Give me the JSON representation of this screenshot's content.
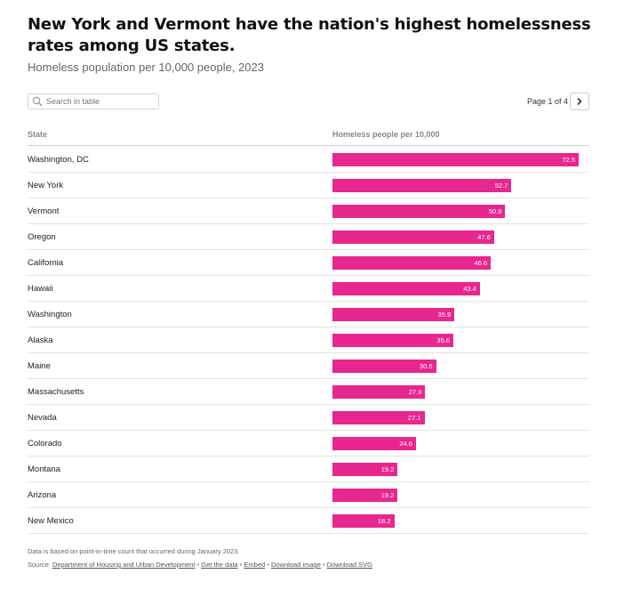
{
  "header": {
    "title": "New York and Vermont have the nation's highest homelessness rates among US states.",
    "subtitle": "Homeless population per 10,000 people, 2023"
  },
  "table_controls": {
    "search_placeholder": "Search in table",
    "page_label": "Page 1 of 4"
  },
  "columns": {
    "state": "State",
    "value": "Homeless people per 10,000"
  },
  "colors": {
    "bar": "#e8268f"
  },
  "chart_data": {
    "type": "bar",
    "orientation": "horizontal",
    "categories": [
      "Washington, DC",
      "New York",
      "Vermont",
      "Oregon",
      "California",
      "Hawaii",
      "Washington",
      "Alaska",
      "Maine",
      "Massachusetts",
      "Nevada",
      "Colorado",
      "Montana",
      "Arizona",
      "New Mexico"
    ],
    "values": [
      72.5,
      52.7,
      50.9,
      47.6,
      46.6,
      43.4,
      35.9,
      35.6,
      30.5,
      27.3,
      27.1,
      24.6,
      19.2,
      19.2,
      18.2
    ],
    "value_labels": [
      "72.5",
      "52.7",
      "50.9",
      "47.6",
      "46.6",
      "43.4",
      "35.9",
      "35.6",
      "30.5",
      "27.3",
      "27.1",
      "24.6",
      "19.2",
      "19.2",
      "18.2"
    ],
    "xlim": [
      0,
      80
    ]
  },
  "footer": {
    "note": "Data is based on point-in-time count that occurred during January 2023.",
    "source_prefix": "Source:",
    "source_link": "Department of Housing and Urban Development",
    "links": [
      "Get the data",
      "Embed",
      "Download image",
      "Download SVG"
    ],
    "separator": "•"
  }
}
